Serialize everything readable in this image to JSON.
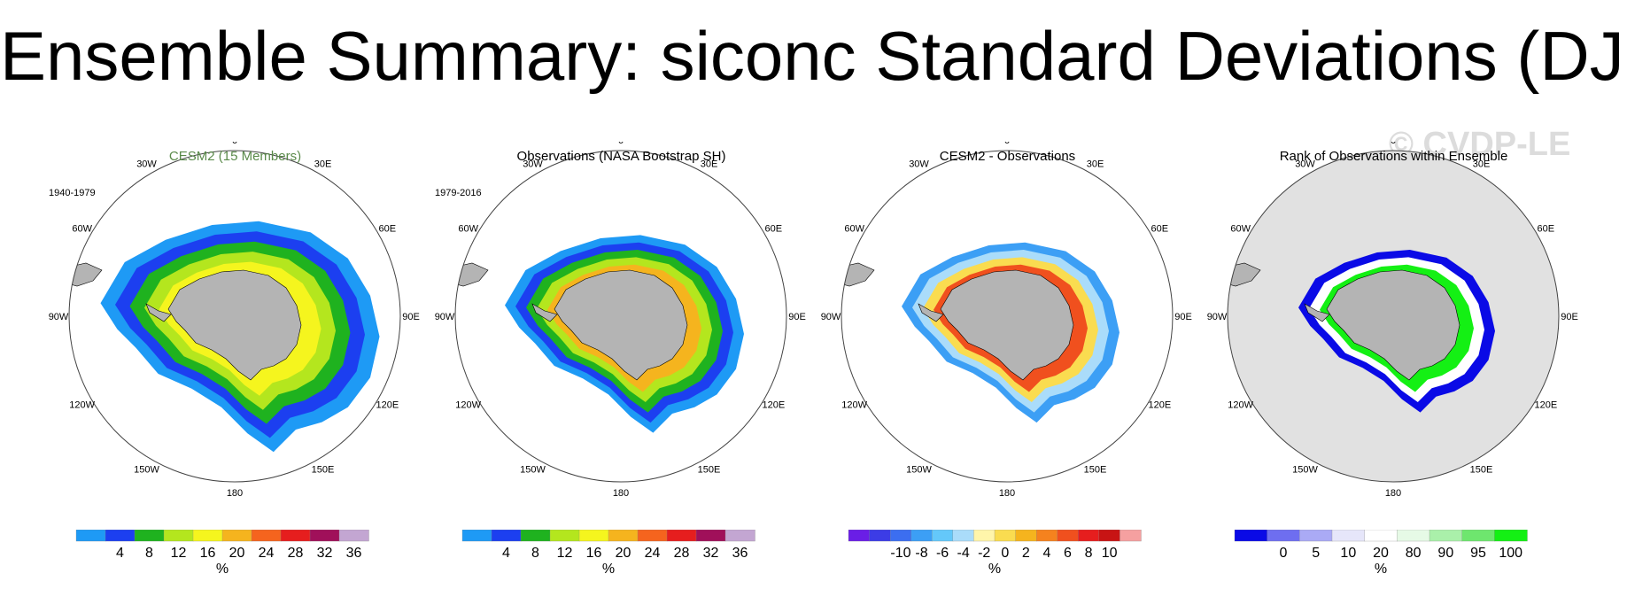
{
  "title": "Ensemble Summary: siconc Standard Deviations (DJF)",
  "watermark": "© CVDP-LE",
  "lon_labels": [
    "0",
    "30E",
    "60E",
    "90E",
    "120E",
    "150E",
    "180",
    "150W",
    "120W",
    "90W",
    "60W",
    "30W"
  ],
  "chart_data": [
    {
      "type": "heatmap",
      "title": "CESM2 (15 Members)",
      "title_color": "#5a8a4a",
      "period": "1940-1979",
      "colorbar": {
        "unit": "%",
        "levels": [
          "4",
          "8",
          "12",
          "16",
          "20",
          "24",
          "28",
          "32",
          "36"
        ],
        "colors": [
          "#1e9af5",
          "#1c3ff0",
          "#1fb21f",
          "#b4e61e",
          "#f5f51e",
          "#f5b41e",
          "#f5641e",
          "#e61e1e",
          "#a0105a",
          "#c3a6d2"
        ]
      },
      "rings": [
        {
          "value": "<4",
          "color": "#1e9af5"
        },
        {
          "value": "4-8",
          "color": "#1c3ff0"
        },
        {
          "value": "8-12",
          "color": "#1fb21f"
        },
        {
          "value": "12-16",
          "color": "#b4e61e"
        },
        {
          "value": "16-20",
          "color": "#f5f51e"
        }
      ]
    },
    {
      "type": "heatmap",
      "title": "Observations (NASA Bootstrap SH)",
      "title_color": "#000000",
      "period": "1979-2016",
      "colorbar": {
        "unit": "%",
        "levels": [
          "4",
          "8",
          "12",
          "16",
          "20",
          "24",
          "28",
          "32",
          "36"
        ],
        "colors": [
          "#1e9af5",
          "#1c3ff0",
          "#1fb21f",
          "#b4e61e",
          "#f5f51e",
          "#f5b41e",
          "#f5641e",
          "#e61e1e",
          "#a0105a",
          "#c3a6d2"
        ]
      },
      "rings": [
        {
          "value": "<4",
          "color": "#1e9af5"
        },
        {
          "value": "4-8",
          "color": "#1c3ff0"
        },
        {
          "value": "8-12",
          "color": "#1fb21f"
        },
        {
          "value": "12-16",
          "color": "#b4e61e"
        },
        {
          "value": "16-24",
          "color": "#f5b41e"
        }
      ]
    },
    {
      "type": "heatmap",
      "title": "CESM2 - Observations",
      "title_color": "#000000",
      "period": "",
      "colorbar": {
        "unit": "%",
        "levels": [
          "-10",
          "-8",
          "-6",
          "-4",
          "-2",
          "0",
          "2",
          "4",
          "6",
          "8",
          "10"
        ],
        "colors": [
          "#6a1ee6",
          "#3c3ce6",
          "#3c6ef0",
          "#3c9ff5",
          "#64c8fa",
          "#aadcfa",
          "#fff5aa",
          "#fadc50",
          "#f5b41e",
          "#f5821e",
          "#f0501e",
          "#e61e1e",
          "#c81414",
          "#f5a0a0"
        ]
      },
      "rings": [
        {
          "value": "-4",
          "color": "#3c9ff5"
        },
        {
          "value": "-2",
          "color": "#aadcfa"
        },
        {
          "value": "4",
          "color": "#fadc50"
        },
        {
          "value": "8",
          "color": "#f0501e"
        }
      ]
    },
    {
      "type": "heatmap",
      "title": "Rank of Observations within Ensemble",
      "title_color": "#000000",
      "period": "",
      "colorbar": {
        "unit": "%",
        "levels": [
          "0",
          "5",
          "10",
          "20",
          "80",
          "90",
          "95",
          "100"
        ],
        "colors": [
          "#0a0ae6",
          "#6e6ef0",
          "#aaaaf5",
          "#e6e6fa",
          "#ffffff",
          "#e6fae6",
          "#aaf0aa",
          "#6ee66e",
          "#14f014"
        ]
      },
      "rings": [
        {
          "value": "0-5",
          "color": "#0a0ae6"
        },
        {
          "value": "80-90",
          "color": "#ffffff"
        },
        {
          "value": "95-100",
          "color": "#14f014"
        }
      ]
    }
  ]
}
